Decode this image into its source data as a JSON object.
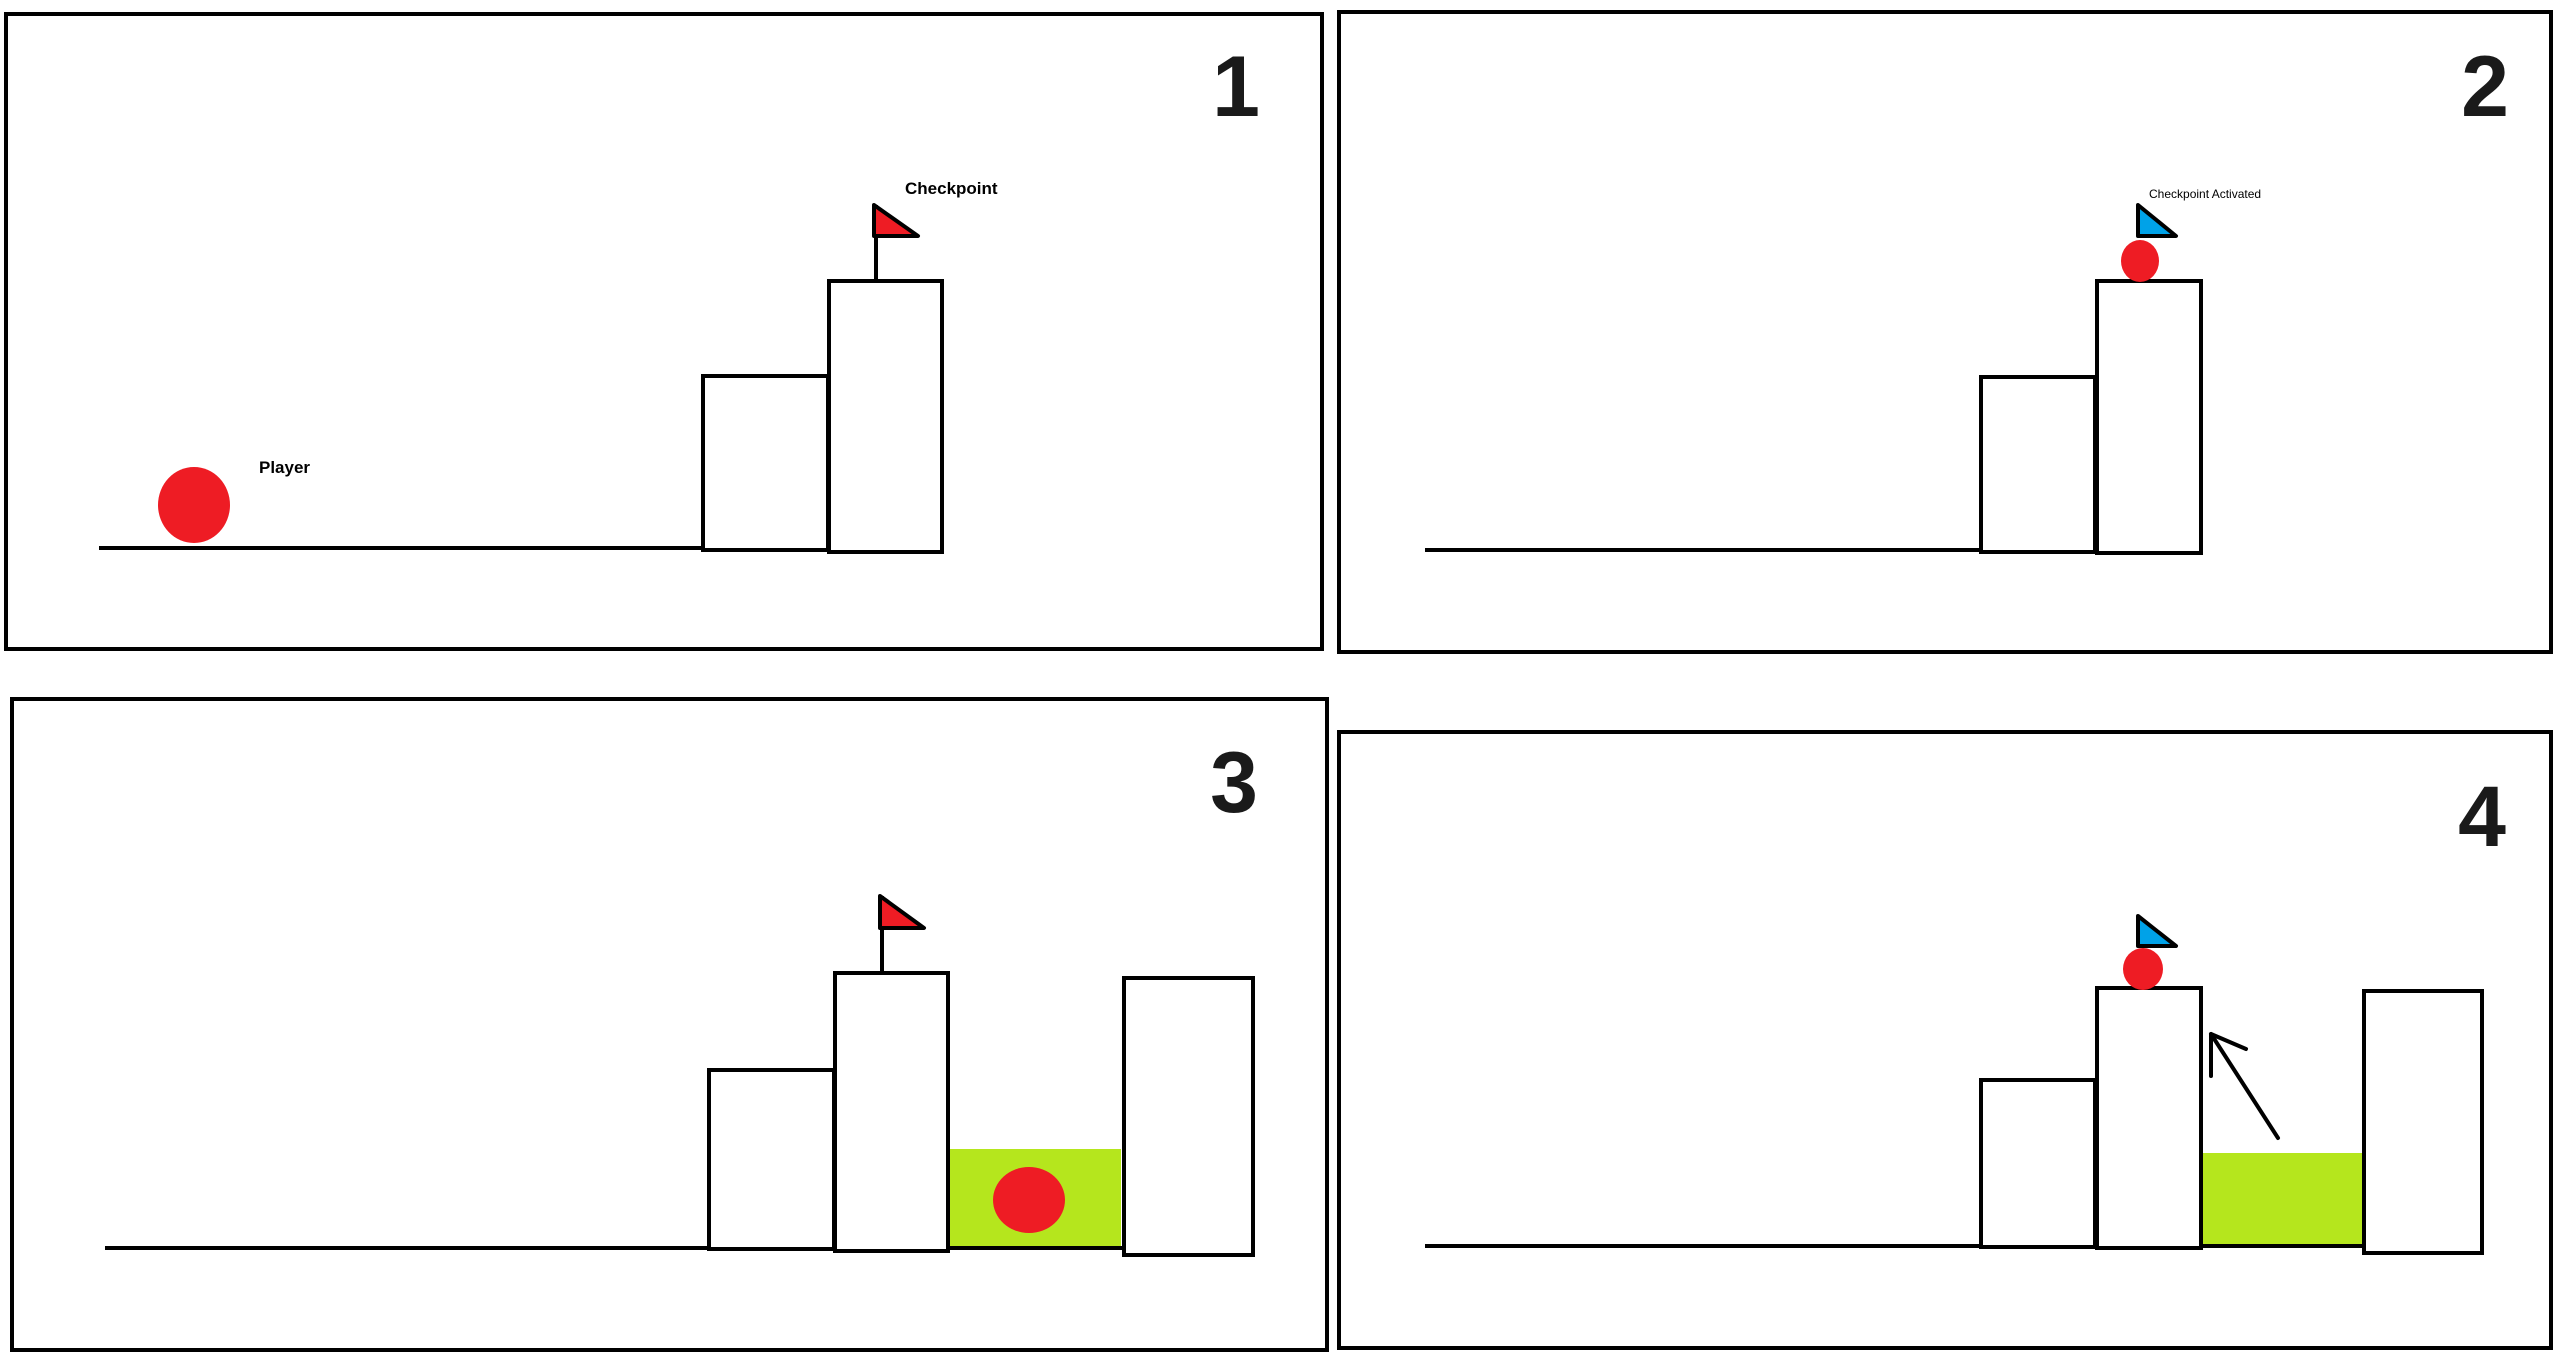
{
  "panels": [
    {
      "number": "1",
      "label": "Checkpoint",
      "player_label": "Player",
      "flag_color": "#ee1c24",
      "flag_state": "inactive"
    },
    {
      "number": "2",
      "label": "Checkpoint Activated",
      "flag_color": "#00a2e8",
      "flag_state": "activated"
    },
    {
      "number": "3",
      "flag_color": "#ee1c24",
      "flag_state": "inactive",
      "hazard_color": "#b5e61d"
    },
    {
      "number": "4",
      "flag_color": "#00a2e8",
      "flag_state": "activated",
      "hazard_color": "#b5e61d"
    }
  ],
  "colors": {
    "player": "#ee1c24",
    "outline": "#000000",
    "hazard": "#b5e61d"
  }
}
